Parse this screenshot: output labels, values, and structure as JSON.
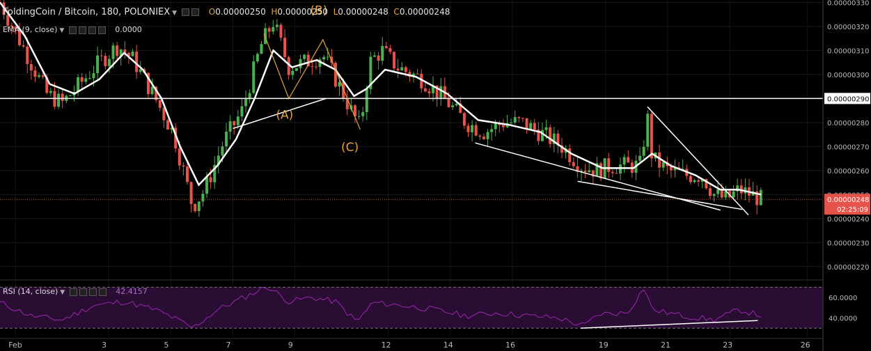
{
  "header": {
    "title": "FoldingCoin / Bitcoin, 180, POLONIEX",
    "open_label": "O",
    "open": "0.00000250",
    "high_label": "H",
    "high": "0.00000250",
    "low_label": "L",
    "low": "0.00000248",
    "close_label": "C",
    "close": "0.00000248"
  },
  "ema_legend": {
    "label": "EMA (9, close)",
    "value": "0.0000"
  },
  "rsi_legend": {
    "label": "RSI (14, close)",
    "value": "42.4157"
  },
  "price_badge": {
    "value": "0.00000248",
    "countdown": "02:25:09"
  },
  "hline_badge": "0.00000290",
  "colors": {
    "up": "#4caf50",
    "down": "#e5534b",
    "ema": "#ffffff",
    "rsi": "#9c27b0",
    "rsi_band": "#2a0d33",
    "annotation": "#e6a23c",
    "price_badge": "#e5534b"
  },
  "chart_data": [
    {
      "type": "candlestick",
      "title": "FoldingCoin / Bitcoin, 180, POLONIEX",
      "x_ticks": [
        "Feb",
        "3",
        "5",
        "7",
        "9",
        "12",
        "14",
        "16",
        "19",
        "21",
        "23",
        "26"
      ],
      "y_ticks": [
        "0.00000330",
        "0.00000320",
        "0.00000310",
        "0.00000300",
        "0.00000290",
        "0.00000280",
        "0.00000270",
        "0.00000260",
        "0.00000250",
        "0.00000240",
        "0.00000230",
        "0.00000220"
      ],
      "ylim": [
        2.15e-06,
        3.31e-06
      ],
      "close_path": [
        [
          0,
          3.3e-06
        ],
        [
          0.8,
          3.1e-06
        ],
        [
          1.5,
          2.92e-06
        ],
        [
          2,
          2.88e-06
        ],
        [
          2.5,
          2.95e-06
        ],
        [
          3.2,
          3.05e-06
        ],
        [
          3.8,
          3.12e-06
        ],
        [
          4.3,
          3.06e-06
        ],
        [
          5,
          2.9e-06
        ],
        [
          5.6,
          2.75e-06
        ],
        [
          6.2,
          2.45e-06
        ],
        [
          6.6,
          2.52e-06
        ],
        [
          7.2,
          2.72e-06
        ],
        [
          7.8,
          2.85e-06
        ],
        [
          8.4,
          3.12e-06
        ],
        [
          8.8,
          3.22e-06
        ],
        [
          9.3,
          3.03e-06
        ],
        [
          9.8,
          3.05e-06
        ],
        [
          10.4,
          3.08e-06
        ],
        [
          10.9,
          2.96e-06
        ],
        [
          11.3,
          2.85e-06
        ],
        [
          11.6,
          2.78e-06
        ],
        [
          11.9,
          3.05e-06
        ],
        [
          12.3,
          3.1e-06
        ],
        [
          12.8,
          3.03e-06
        ],
        [
          13.6,
          2.98e-06
        ],
        [
          14.3,
          2.9e-06
        ],
        [
          15.0,
          2.8e-06
        ],
        [
          15.6,
          2.76e-06
        ],
        [
          16.2,
          2.8e-06
        ],
        [
          16.8,
          2.8e-06
        ],
        [
          17.5,
          2.75e-06
        ],
        [
          18.1,
          2.7e-06
        ],
        [
          18.7,
          2.62e-06
        ],
        [
          19.2,
          2.6e-06
        ],
        [
          19.7,
          2.62e-06
        ],
        [
          20.2,
          2.62e-06
        ],
        [
          20.6,
          2.62e-06
        ],
        [
          20.85,
          2.82e-06
        ],
        [
          21.0,
          2.65e-06
        ],
        [
          21.5,
          2.6e-06
        ],
        [
          22.1,
          2.58e-06
        ],
        [
          22.6,
          2.58e-06
        ],
        [
          23.0,
          2.5e-06
        ],
        [
          23.4,
          2.48e-06
        ],
        [
          23.8,
          2.52e-06
        ],
        [
          24.2,
          2.5e-06
        ],
        [
          24.5,
          2.48e-06
        ]
      ],
      "ema_path": [
        [
          0,
          3.3e-06
        ],
        [
          0.8,
          3.16e-06
        ],
        [
          1.6,
          2.96e-06
        ],
        [
          2.4,
          2.92e-06
        ],
        [
          3.2,
          2.98e-06
        ],
        [
          4.0,
          3.09e-06
        ],
        [
          4.6,
          3.02e-06
        ],
        [
          5.2,
          2.9e-06
        ],
        [
          5.8,
          2.7e-06
        ],
        [
          6.4,
          2.54e-06
        ],
        [
          7.0,
          2.62e-06
        ],
        [
          7.6,
          2.73e-06
        ],
        [
          8.2,
          2.9e-06
        ],
        [
          8.8,
          3.1e-06
        ],
        [
          9.4,
          3.03e-06
        ],
        [
          10.2,
          3.06e-06
        ],
        [
          10.8,
          3.02e-06
        ],
        [
          11.4,
          2.91e-06
        ],
        [
          11.8,
          2.94e-06
        ],
        [
          12.4,
          3.02e-06
        ],
        [
          13.4,
          2.99e-06
        ],
        [
          14.4,
          2.92e-06
        ],
        [
          15.4,
          2.81e-06
        ],
        [
          16.4,
          2.79e-06
        ],
        [
          17.4,
          2.76e-06
        ],
        [
          18.4,
          2.67e-06
        ],
        [
          19.4,
          2.61e-06
        ],
        [
          20.4,
          2.61e-06
        ],
        [
          21.0,
          2.67e-06
        ],
        [
          21.6,
          2.62e-06
        ],
        [
          22.4,
          2.58e-06
        ],
        [
          23.2,
          2.52e-06
        ],
        [
          23.8,
          2.52e-06
        ],
        [
          24.5,
          2.5e-06
        ]
      ],
      "horizontal_line": 2.9e-06,
      "last_price": 2.48e-06,
      "annotations": [
        "(A)",
        "(B)",
        "(C)"
      ]
    },
    {
      "type": "line",
      "title": "RSI (14, close)",
      "y_ticks": [
        "60.0000",
        "40.0000"
      ],
      "bands": [
        70,
        30
      ],
      "ylim": [
        22,
        75
      ],
      "last_value": 42.4157,
      "path": [
        [
          0,
          55
        ],
        [
          1,
          42
        ],
        [
          2,
          38
        ],
        [
          3,
          52
        ],
        [
          4,
          56
        ],
        [
          5,
          48
        ],
        [
          5.6,
          40
        ],
        [
          6.2,
          30
        ],
        [
          7.0,
          48
        ],
        [
          8.0,
          62
        ],
        [
          8.6,
          71
        ],
        [
          9.3,
          56
        ],
        [
          10,
          60
        ],
        [
          10.8,
          56
        ],
        [
          11.5,
          36
        ],
        [
          12,
          55
        ],
        [
          13,
          52
        ],
        [
          14,
          48
        ],
        [
          15,
          42
        ],
        [
          16,
          45
        ],
        [
          17,
          42
        ],
        [
          18,
          40
        ],
        [
          18.8,
          32
        ],
        [
          19.3,
          44
        ],
        [
          20.2,
          45
        ],
        [
          20.75,
          70
        ],
        [
          21,
          48
        ],
        [
          22,
          42
        ],
        [
          23,
          38
        ],
        [
          23.8,
          48
        ],
        [
          24.5,
          42.4
        ]
      ]
    }
  ]
}
